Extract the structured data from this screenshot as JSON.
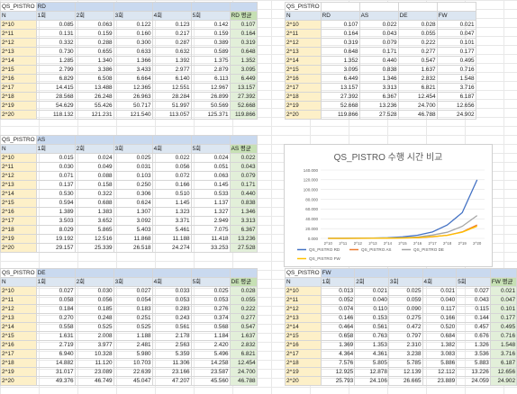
{
  "tables": [
    {
      "name": "QS_PISTRO",
      "series": "RD",
      "headers": [
        "N",
        "1회",
        "2회",
        "3회",
        "4회",
        "5회",
        "RD  평균"
      ],
      "rows": [
        [
          "2^10",
          "0.085",
          "0.063",
          "0.122",
          "0.123",
          "0.142",
          "0.107"
        ],
        [
          "2^11",
          "0.131",
          "0.159",
          "0.160",
          "0.217",
          "0.159",
          "0.164"
        ],
        [
          "2^12",
          "0.332",
          "0.288",
          "0.300",
          "0.287",
          "0.389",
          "0.319"
        ],
        [
          "2^13",
          "0.730",
          "0.655",
          "0.633",
          "0.632",
          "0.589",
          "0.648"
        ],
        [
          "2^14",
          "1.285",
          "1.340",
          "1.366",
          "1.392",
          "1.375",
          "1.352"
        ],
        [
          "2^15",
          "2.799",
          "3.386",
          "3.433",
          "2.977",
          "2.879",
          "3.095"
        ],
        [
          "2^16",
          "6.829",
          "6.508",
          "6.664",
          "6.140",
          "6.113",
          "6.449"
        ],
        [
          "2^17",
          "14.415",
          "13.488",
          "12.365",
          "12.551",
          "12.967",
          "13.157"
        ],
        [
          "2^18",
          "28.568",
          "26.248",
          "26.963",
          "28.284",
          "26.899",
          "27.392"
        ],
        [
          "2^19",
          "54.629",
          "55.426",
          "50.717",
          "51.997",
          "50.569",
          "52.668"
        ],
        [
          "2^20",
          "118.132",
          "121.231",
          "121.540",
          "113.057",
          "125.371",
          "119.866"
        ]
      ]
    },
    {
      "name": "QS_PISTRO",
      "series": "",
      "headers": [
        "N",
        "RD",
        "AS",
        "DE",
        "FW"
      ],
      "rows": [
        [
          "2^10",
          "0.107",
          "0.022",
          "0.028",
          "0.021"
        ],
        [
          "2^11",
          "0.164",
          "0.043",
          "0.055",
          "0.047"
        ],
        [
          "2^12",
          "0.319",
          "0.079",
          "0.222",
          "0.101"
        ],
        [
          "2^13",
          "0.648",
          "0.171",
          "0.277",
          "0.177"
        ],
        [
          "2^14",
          "1.352",
          "0.440",
          "0.547",
          "0.495"
        ],
        [
          "2^15",
          "3.095",
          "0.838",
          "1.637",
          "0.716"
        ],
        [
          "2^16",
          "6.449",
          "1.346",
          "2.832",
          "1.548"
        ],
        [
          "2^17",
          "13.157",
          "3.313",
          "6.821",
          "3.716"
        ],
        [
          "2^18",
          "27.392",
          "6.367",
          "12.454",
          "6.187"
        ],
        [
          "2^19",
          "52.668",
          "13.236",
          "24.700",
          "12.656"
        ],
        [
          "2^20",
          "119.866",
          "27.528",
          "46.788",
          "24.902"
        ]
      ]
    },
    {
      "name": "QS_PISTRO",
      "series": "AS",
      "headers": [
        "N",
        "1회",
        "2회",
        "3회",
        "4회",
        "5회",
        "AS  평균"
      ],
      "rows": [
        [
          "2^10",
          "0.015",
          "0.024",
          "0.025",
          "0.022",
          "0.024",
          "0.022"
        ],
        [
          "2^11",
          "0.030",
          "0.049",
          "0.031",
          "0.056",
          "0.051",
          "0.043"
        ],
        [
          "2^12",
          "0.071",
          "0.088",
          "0.103",
          "0.072",
          "0.063",
          "0.079"
        ],
        [
          "2^13",
          "0.137",
          "0.158",
          "0.250",
          "0.166",
          "0.145",
          "0.171"
        ],
        [
          "2^14",
          "0.530",
          "0.322",
          "0.306",
          "0.510",
          "0.533",
          "0.440"
        ],
        [
          "2^15",
          "0.594",
          "0.688",
          "0.624",
          "1.145",
          "1.137",
          "0.838"
        ],
        [
          "2^16",
          "1.389",
          "1.383",
          "1.307",
          "1.323",
          "1.327",
          "1.346"
        ],
        [
          "2^17",
          "3.503",
          "3.652",
          "3.092",
          "3.371",
          "2.949",
          "3.313"
        ],
        [
          "2^18",
          "8.029",
          "5.865",
          "5.403",
          "5.461",
          "7.075",
          "6.367"
        ],
        [
          "2^19",
          "19.192",
          "12.516",
          "11.868",
          "11.188",
          "11.418",
          "13.236"
        ],
        [
          "2^20",
          "29.157",
          "25.339",
          "26.518",
          "24.274",
          "33.253",
          "27.528"
        ]
      ]
    },
    {
      "name": "QS_PISTRO",
      "series": "DE",
      "headers": [
        "N",
        "1회",
        "2회",
        "3회",
        "4회",
        "5회",
        "DE  평균"
      ],
      "rows": [
        [
          "2^10",
          "0.027",
          "0.030",
          "0.027",
          "0.033",
          "0.025",
          "0.028"
        ],
        [
          "2^11",
          "0.058",
          "0.056",
          "0.054",
          "0.053",
          "0.053",
          "0.055"
        ],
        [
          "2^12",
          "0.184",
          "0.185",
          "0.183",
          "0.283",
          "0.276",
          "0.222"
        ],
        [
          "2^13",
          "0.270",
          "0.248",
          "0.251",
          "0.243",
          "0.374",
          "0.277"
        ],
        [
          "2^14",
          "0.558",
          "0.525",
          "0.525",
          "0.561",
          "0.568",
          "0.547"
        ],
        [
          "2^15",
          "1.631",
          "2.008",
          "1.188",
          "2.178",
          "1.184",
          "1.637"
        ],
        [
          "2^16",
          "2.719",
          "3.977",
          "2.481",
          "2.563",
          "2.420",
          "2.832"
        ],
        [
          "2^17",
          "6.940",
          "10.328",
          "5.980",
          "5.359",
          "5.496",
          "6.821"
        ],
        [
          "2^18",
          "14.882",
          "11.120",
          "10.703",
          "11.306",
          "14.258",
          "12.454"
        ],
        [
          "2^19",
          "31.017",
          "23.089",
          "22.639",
          "23.166",
          "23.587",
          "24.700"
        ],
        [
          "2^20",
          "49.376",
          "46.749",
          "45.047",
          "47.207",
          "45.560",
          "46.788"
        ]
      ]
    },
    {
      "name": "QS_PISTRO",
      "series": "FW",
      "headers": [
        "N",
        "1회",
        "2회",
        "3회",
        "4회",
        "5회",
        "FW  평균"
      ],
      "rows": [
        [
          "2^10",
          "0.013",
          "0.021",
          "0.025",
          "0.021",
          "0.027",
          "0.021"
        ],
        [
          "2^11",
          "0.052",
          "0.040",
          "0.059",
          "0.040",
          "0.043",
          "0.047"
        ],
        [
          "2^12",
          "0.074",
          "0.110",
          "0.090",
          "0.117",
          "0.115",
          "0.101"
        ],
        [
          "2^13",
          "0.146",
          "0.153",
          "0.275",
          "0.166",
          "0.144",
          "0.177"
        ],
        [
          "2^14",
          "0.464",
          "0.561",
          "0.472",
          "0.520",
          "0.457",
          "0.495"
        ],
        [
          "2^15",
          "0.658",
          "0.763",
          "0.797",
          "0.684",
          "0.676",
          "0.716"
        ],
        [
          "2^16",
          "1.369",
          "1.353",
          "2.310",
          "1.382",
          "1.326",
          "1.548"
        ],
        [
          "2^17",
          "4.364",
          "4.361",
          "3.238",
          "3.083",
          "3.536",
          "3.716"
        ],
        [
          "2^18",
          "7.576",
          "5.805",
          "5.785",
          "5.886",
          "5.883",
          "6.187"
        ],
        [
          "2^19",
          "12.925",
          "12.878",
          "12.139",
          "12.112",
          "13.226",
          "12.656"
        ],
        [
          "2^20",
          "25.793",
          "24.106",
          "26.665",
          "23.889",
          "24.059",
          "24.902"
        ]
      ]
    }
  ],
  "chart_data": {
    "type": "line",
    "title": "QS_PISTRO 수행 시간 비교",
    "categories": [
      "2^10",
      "2^11",
      "2^12",
      "2^13",
      "2^14",
      "2^15",
      "2^16",
      "2^17",
      "2^18",
      "2^19",
      "2^20"
    ],
    "series": [
      {
        "name": "QS_PISTRO RD",
        "color": "#4472c4",
        "values": [
          0.107,
          0.164,
          0.319,
          0.648,
          1.352,
          3.095,
          6.449,
          13.157,
          27.392,
          52.668,
          119.866
        ]
      },
      {
        "name": "QS_PISTRO AS",
        "color": "#ed7d31",
        "values": [
          0.022,
          0.043,
          0.079,
          0.171,
          0.44,
          0.838,
          1.346,
          3.313,
          6.367,
          13.236,
          27.528
        ]
      },
      {
        "name": "QS_PISTRO DE",
        "color": "#a5a5a5",
        "values": [
          0.028,
          0.055,
          0.222,
          0.277,
          0.547,
          1.637,
          2.832,
          6.821,
          12.454,
          24.7,
          46.788
        ]
      },
      {
        "name": "QS_PISTRO FW",
        "color": "#ffc000",
        "values": [
          0.021,
          0.047,
          0.101,
          0.177,
          0.495,
          0.716,
          1.548,
          3.716,
          6.187,
          12.656,
          24.902
        ]
      }
    ],
    "ylim": [
      0,
      140
    ],
    "yticks": [
      "0.000",
      "20.000",
      "40.000",
      "60.000",
      "80.000",
      "100.000",
      "120.000",
      "140.000"
    ],
    "grid": true,
    "legend_position": "bottom"
  }
}
